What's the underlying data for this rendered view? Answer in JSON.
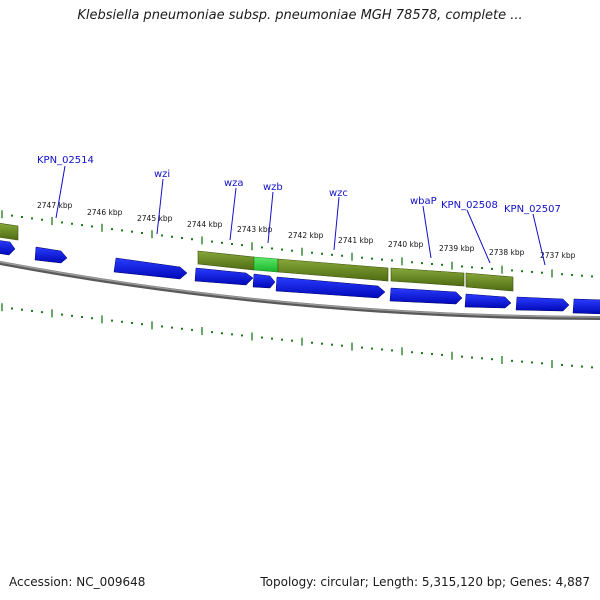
{
  "header": {
    "title": "Klebsiella pneumoniae subsp. pneumoniae MGH 78578, complete ..."
  },
  "footer": {
    "accession": "Accession: NC_009648",
    "summary": "Topology: circular; Length: 5,315,120 bp; Genes: 4,887"
  },
  "colors": {
    "cds_arrow": "#0a14e0",
    "gene_bar": "#6b8c23",
    "highlight_bar": "#22cc33",
    "backbone": "#7f7f7f",
    "tick": "#1a7a1a",
    "label_text": "#1010c8"
  },
  "scale": {
    "unit": "kbp",
    "tick_labels": [
      "2747 kbp",
      "2746 kbp",
      "2745 kbp",
      "2744 kbp",
      "2743 kbp",
      "2742 kbp",
      "2741 kbp",
      "2740 kbp",
      "2739 kbp",
      "2738 kbp",
      "2737 kbp"
    ]
  },
  "gene_labels": [
    "KPN_02514",
    "wzi",
    "wza",
    "wzb",
    "wzc",
    "wbaP",
    "KPN_02508",
    "KPN_02507"
  ]
}
